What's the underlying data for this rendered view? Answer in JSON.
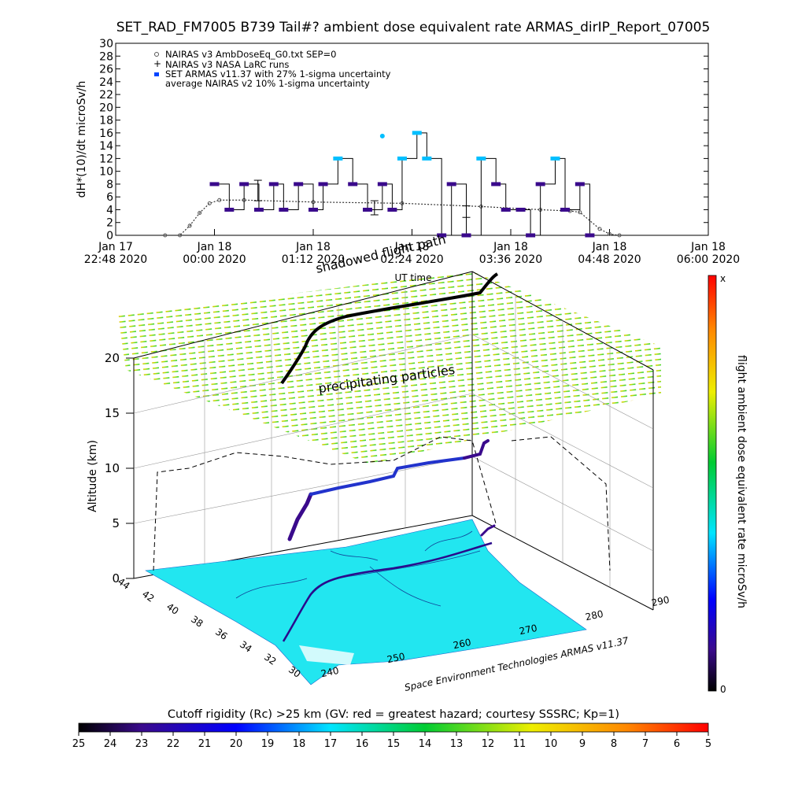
{
  "title": "SET_RAD_FM7005  B739 Tail#? ambient dose equivalent rate ARMAS_dirIP_Report_07005",
  "chart_data": [
    {
      "type": "line",
      "ylabel": "dH*(10)/dt microSv/h",
      "xlabel": "UT time",
      "ylim": [
        0,
        30
      ],
      "y_ticks": [
        "0",
        "2",
        "4",
        "6",
        "8",
        "10",
        "12",
        "14",
        "16",
        "18",
        "20",
        "22",
        "24",
        "26",
        "28",
        "30"
      ],
      "x_ticks": [
        {
          "line1": "Jan 17",
          "line2": "22:48 2020"
        },
        {
          "line1": "Jan 18",
          "line2": "00:00 2020"
        },
        {
          "line1": "Jan 18",
          "line2": "01:12 2020"
        },
        {
          "line1": "Jan 18",
          "line2": "02:24 2020"
        },
        {
          "line1": "Jan 18",
          "line2": "03:36 2020"
        },
        {
          "line1": "Jan 18",
          "line2": "04:48 2020"
        },
        {
          "line1": "Jan 18",
          "line2": "06:00 2020"
        }
      ],
      "legend": [
        "NAIRAS v3 AmbDoseEq_G0.txt SEP=0",
        "NAIRAS v3 NASA LaRC runs",
        "SET ARMAS v11.37 with 27% 1-sigma uncertainty",
        "average NAIRAS v2 10% 1-sigma uncertainty"
      ],
      "legend_placement": "top-left",
      "series": [
        {
          "name": "NAIRAS v3 AmbDoseEq_G0.txt SEP=0",
          "x": [
            0.5,
            0.65,
            0.75,
            0.85,
            0.95,
            1.05,
            1.3,
            2.0,
            2.9,
            3.7,
            4.3,
            4.6,
            4.7,
            4.9,
            5.0,
            5.1
          ],
          "values": [
            0,
            0,
            1.5,
            3.5,
            5,
            5.5,
            5.5,
            5.2,
            5.0,
            4.5,
            4.0,
            3.8,
            3.6,
            1.0,
            0.2,
            0
          ]
        },
        {
          "name": "SET ARMAS v11.37 with 27% 1-sigma uncertainty",
          "x": [
            1.0,
            1.15,
            1.3,
            1.45,
            1.6,
            1.7,
            1.85,
            2.0,
            2.1,
            2.25,
            2.4,
            2.55,
            2.7,
            2.8,
            2.9,
            3.05,
            3.15,
            3.3,
            3.4,
            3.55,
            3.7,
            3.85,
            3.95,
            4.1,
            4.2,
            4.3,
            4.45,
            4.55,
            4.7,
            4.8
          ],
          "values": [
            8,
            4,
            8,
            4,
            8,
            4,
            8,
            4,
            8,
            12,
            8,
            4,
            8,
            4,
            12,
            16,
            12,
            0,
            8,
            0,
            12,
            8,
            4,
            4,
            0,
            8,
            12,
            4,
            8,
            0
          ],
          "colors": [
            "#3a0a8c",
            "#00bfff"
          ]
        }
      ],
      "error_bars": [
        {
          "x": 1.44,
          "y": 7.0,
          "low": 5.4,
          "high": 8.6
        },
        {
          "x": 2.62,
          "y": 4.3,
          "low": 3.2,
          "high": 5.4
        },
        {
          "x": 3.55,
          "y": 3.7,
          "low": 2.8,
          "high": 4.6
        }
      ],
      "peak_value": 15.5
    },
    {
      "type": "surface-3d",
      "title_upper": "shadowed flight path",
      "ylabel": "Altitude (km)",
      "z_ticks": [
        "0",
        "5",
        "10",
        "15",
        "20"
      ],
      "lat_ticks": [
        "44",
        "42",
        "40",
        "38",
        "36",
        "34",
        "32",
        "30"
      ],
      "lon_ticks": [
        "240",
        "250",
        "260",
        "270",
        "280",
        "290"
      ],
      "layer_label": "precipitating particles",
      "credit": "Space Environment Technologies ARMAS v11.37",
      "right_bar": {
        "label": "flight ambient dose equivalent rate microSv/h",
        "top": "x",
        "bottom": "0"
      },
      "bottom_bar": {
        "label": "Cutoff rigidity (Rc) >25 km (GV: red = greatest hazard; courtesy SSSRC; Kp=1)",
        "ticks": [
          "25",
          "24",
          "23",
          "22",
          "21",
          "20",
          "19",
          "18",
          "17",
          "16",
          "15",
          "14",
          "13",
          "12",
          "11",
          "10",
          "9",
          "8",
          "7",
          "6",
          "5"
        ]
      }
    }
  ],
  "colors": {
    "armas_low": "#3a0a8c",
    "armas_high": "#00bfff",
    "ground": "#22e6f0",
    "layer_warm": "#e69900",
    "layer_cool": "#33cc33"
  }
}
